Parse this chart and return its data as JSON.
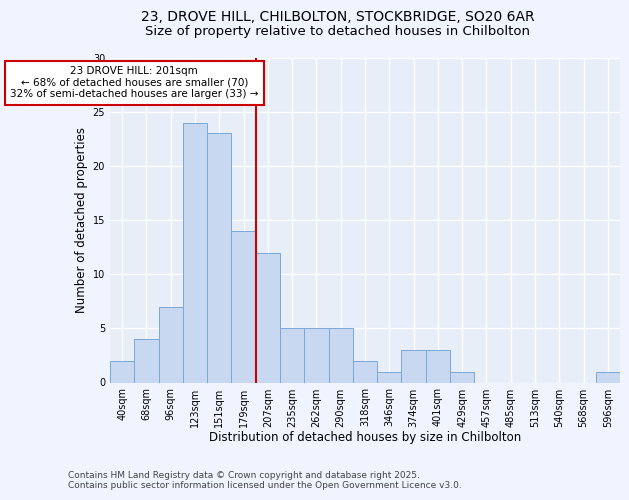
{
  "title_line1": "23, DROVE HILL, CHILBOLTON, STOCKBRIDGE, SO20 6AR",
  "title_line2": "Size of property relative to detached houses in Chilbolton",
  "xlabel": "Distribution of detached houses by size in Chilbolton",
  "ylabel": "Number of detached properties",
  "footer_line1": "Contains HM Land Registry data © Crown copyright and database right 2025.",
  "footer_line2": "Contains public sector information licensed under the Open Government Licence v3.0.",
  "bar_labels": [
    "40sqm",
    "68sqm",
    "96sqm",
    "123sqm",
    "151sqm",
    "179sqm",
    "207sqm",
    "235sqm",
    "262sqm",
    "290sqm",
    "318sqm",
    "346sqm",
    "374sqm",
    "401sqm",
    "429sqm",
    "457sqm",
    "485sqm",
    "513sqm",
    "540sqm",
    "568sqm",
    "596sqm"
  ],
  "bar_values": [
    2,
    4,
    7,
    24,
    23,
    14,
    12,
    5,
    5,
    5,
    2,
    1,
    3,
    3,
    1,
    0,
    0,
    0,
    0,
    0,
    1
  ],
  "bar_color": "#c8d8f0",
  "bar_edge_color": "#7aa8d8",
  "vline_x": 6,
  "vline_color": "#cc0000",
  "annotation_text": "23 DROVE HILL: 201sqm\n← 68% of detached houses are smaller (70)\n32% of semi-detached houses are larger (33) →",
  "annotation_box_color": "#ffffff",
  "annotation_box_edge": "#cc0000",
  "ylim": [
    0,
    30
  ],
  "yticks": [
    0,
    5,
    10,
    15,
    20,
    25,
    30
  ],
  "bg_color": "#f0f4ff",
  "plot_bg_color": "#e8eef8",
  "grid_color": "#ffffff",
  "title_fontsize": 10,
  "subtitle_fontsize": 9.5,
  "axis_label_fontsize": 8.5,
  "tick_fontsize": 7,
  "footer_fontsize": 6.5,
  "annotation_fontsize": 7.5
}
